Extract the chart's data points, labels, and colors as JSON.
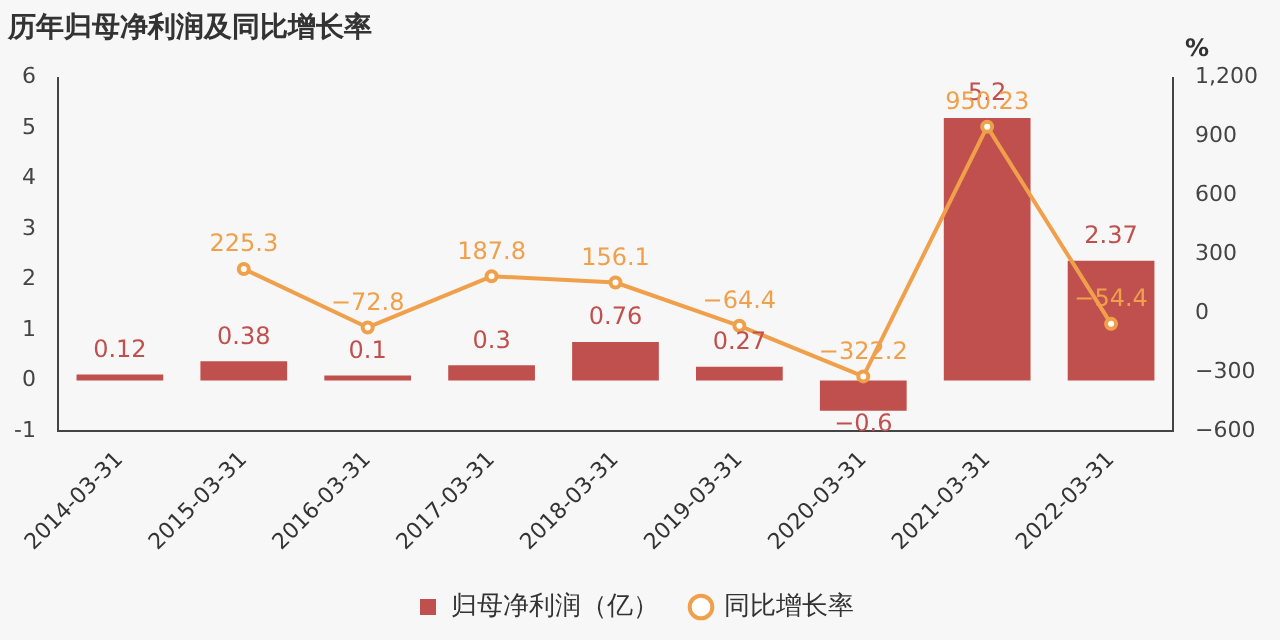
{
  "chart_data": {
    "type": "bar",
    "title": "历年归母净利润及同比增长率",
    "y2label": "%",
    "categories": [
      "2014-03-31",
      "2015-03-31",
      "2016-03-31",
      "2017-03-31",
      "2018-03-31",
      "2019-03-31",
      "2020-03-31",
      "2021-03-31",
      "2022-03-31"
    ],
    "series": [
      {
        "name": "归母净利润（亿）",
        "color": "#c0504d",
        "values": [
          0.12,
          0.38,
          0.1,
          0.3,
          0.76,
          0.27,
          -0.6,
          5.2,
          2.37
        ]
      },
      {
        "name": "同比增长率",
        "type": "line",
        "axis": "y2",
        "color": "#f0a04b",
        "values": [
          null,
          225.3,
          -72.8,
          187.8,
          156.1,
          -64.4,
          -322.2,
          950.23,
          -54.4
        ]
      }
    ],
    "ylim": [
      -1,
      6
    ],
    "yticks": [
      -1,
      0,
      1,
      2,
      3,
      4,
      5,
      6
    ],
    "y2lim": [
      -600,
      1200
    ],
    "y2ticks": [
      {
        "value": -600,
        "label": "−600"
      },
      {
        "value": -300,
        "label": "−300"
      },
      0,
      300,
      600,
      900,
      {
        "value": 1200,
        "label": "1,200"
      }
    ],
    "data_labels": true,
    "grid": false,
    "legend": "bottom",
    "marker": "circle",
    "line_style": "solid"
  }
}
